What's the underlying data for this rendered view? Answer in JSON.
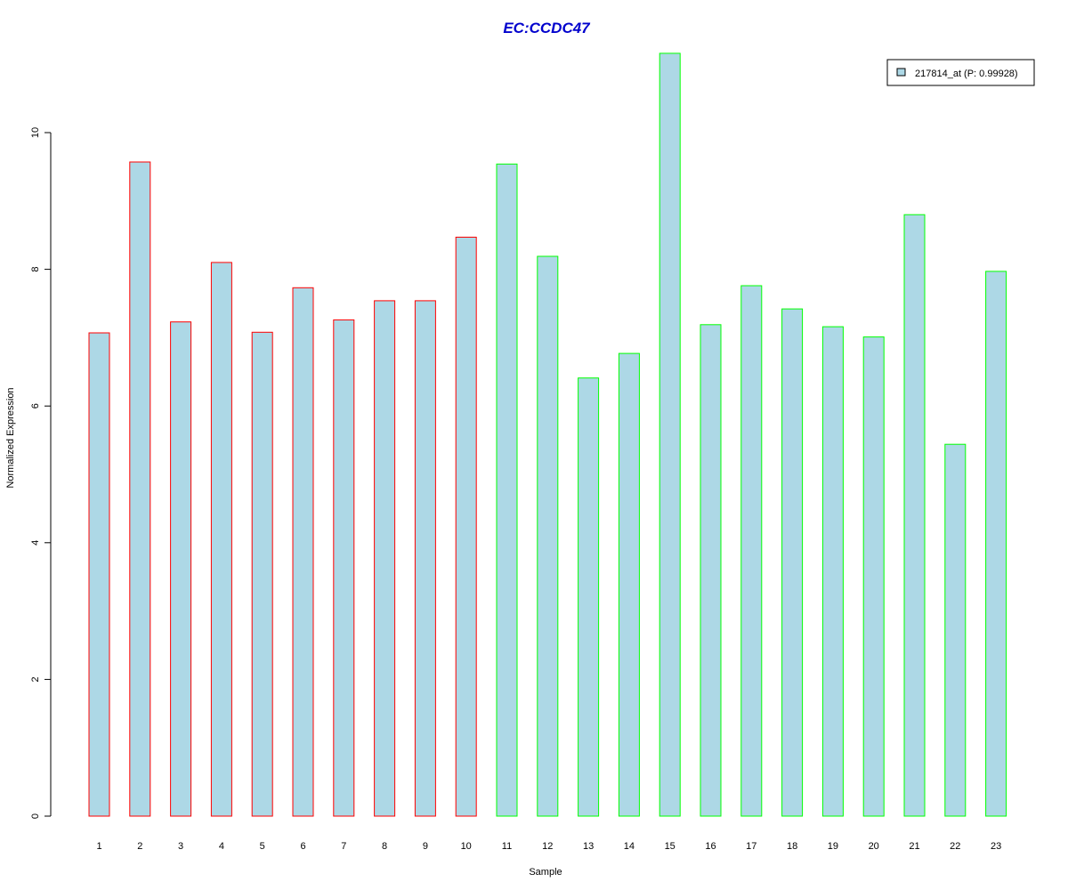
{
  "chart_data": {
    "type": "bar",
    "title": "EC:CCDC47",
    "xlabel": "Sample",
    "ylabel": "Normalized Expression",
    "ylim": [
      0,
      11.2
    ],
    "yticks": [
      0,
      2,
      4,
      6,
      8,
      10
    ],
    "categories": [
      "1",
      "2",
      "3",
      "4",
      "5",
      "6",
      "7",
      "8",
      "9",
      "10",
      "11",
      "12",
      "13",
      "14",
      "15",
      "16",
      "17",
      "18",
      "19",
      "20",
      "21",
      "22",
      "23"
    ],
    "series": [
      {
        "name": "217814_at (P: 0.99928)",
        "values": [
          7.07,
          9.57,
          7.23,
          8.1,
          7.08,
          7.73,
          7.26,
          7.54,
          7.54,
          8.47,
          9.54,
          8.19,
          6.41,
          6.77,
          11.16,
          7.19,
          7.76,
          7.42,
          7.16,
          7.01,
          8.8,
          5.44,
          7.97
        ]
      }
    ],
    "groups": [
      {
        "from": 1,
        "to": 10,
        "border_color": "#ff0000"
      },
      {
        "from": 11,
        "to": 23,
        "border_color": "#00ff00"
      }
    ],
    "bar_fill": "#add8e6",
    "title_color": "#0000cd",
    "legend": {
      "position": "top-right",
      "label": "217814_at (P: 0.99928)"
    },
    "grid": false
  }
}
